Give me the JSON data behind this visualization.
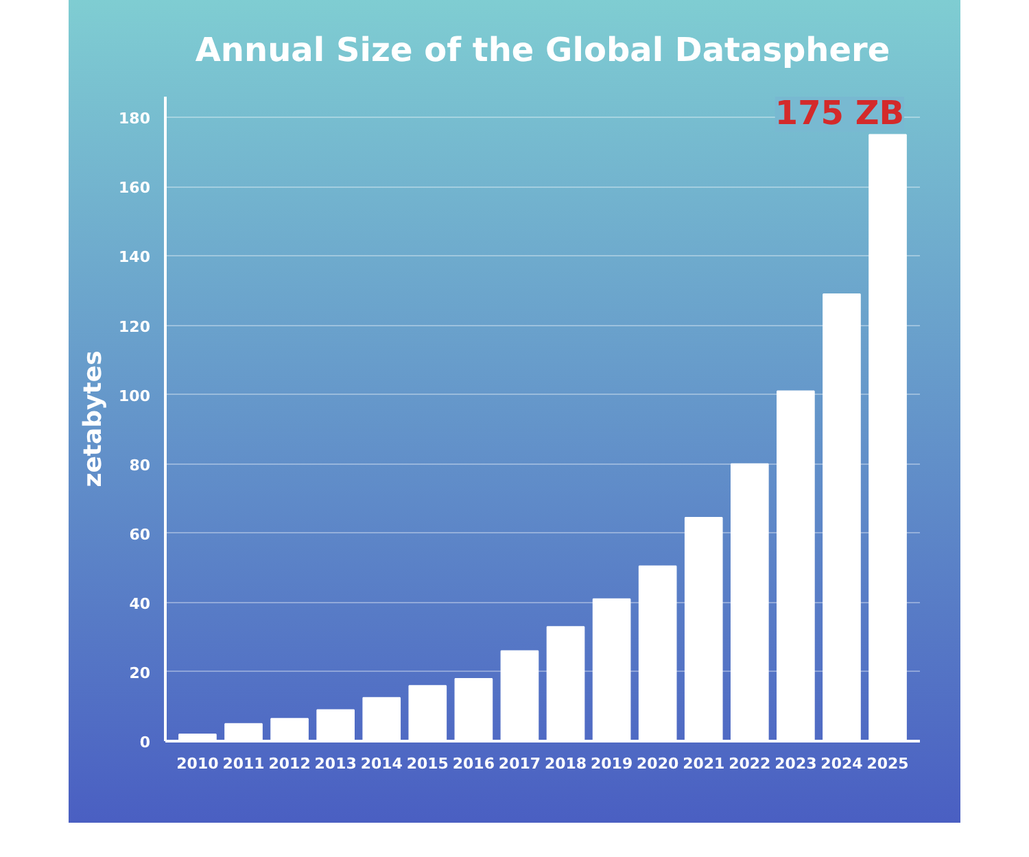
{
  "chart_data": {
    "type": "bar",
    "title": "Annual Size of the Global Datasphere",
    "ylabel": "zetabytes",
    "categories": [
      "2010",
      "2011",
      "2012",
      "2013",
      "2014",
      "2015",
      "2016",
      "2017",
      "2018",
      "2019",
      "2020",
      "2021",
      "2022",
      "2023",
      "2024",
      "2025"
    ],
    "values": [
      2,
      5,
      6.5,
      9,
      12.5,
      16,
      18,
      26,
      33,
      41,
      50.5,
      64.5,
      80,
      101,
      129,
      175
    ],
    "color": "#ffffff",
    "ylim": [
      0,
      186
    ],
    "yticks": [
      0,
      20,
      40,
      60,
      80,
      100,
      120,
      140,
      160,
      180
    ],
    "grid": "y",
    "annotations": [
      {
        "text": "175 ZB",
        "x": "2025",
        "y": 175
      }
    ]
  }
}
